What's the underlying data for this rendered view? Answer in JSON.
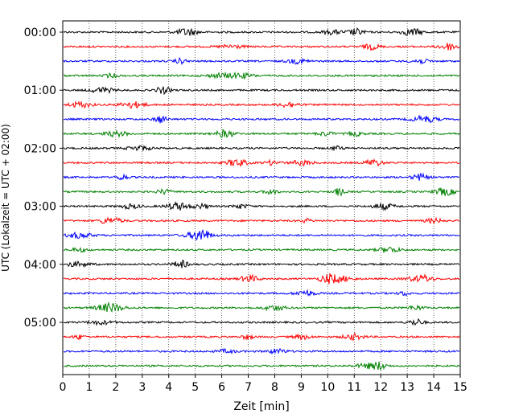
{
  "chart_data": {
    "type": "line",
    "title": "",
    "xlabel": "Zeit  [min]",
    "ylabel": "UTC (Lokalzeit = UTC + 02:00)",
    "xlim": [
      0,
      15
    ],
    "x_ticks": [
      "0",
      "1",
      "2",
      "3",
      "4",
      "5",
      "6",
      "7",
      "8",
      "9",
      "10",
      "11",
      "12",
      "13",
      "14",
      "15"
    ],
    "y_tick_labels": [
      "00:00",
      "01:00",
      "02:00",
      "03:00",
      "04:00",
      "05:00"
    ],
    "trace_interval_min": 15,
    "trace_count": 24,
    "grid": "vertical dotted at each minute",
    "series_colors": [
      "#000000",
      "#ff0000",
      "#0000ff",
      "#008000"
    ]
  }
}
